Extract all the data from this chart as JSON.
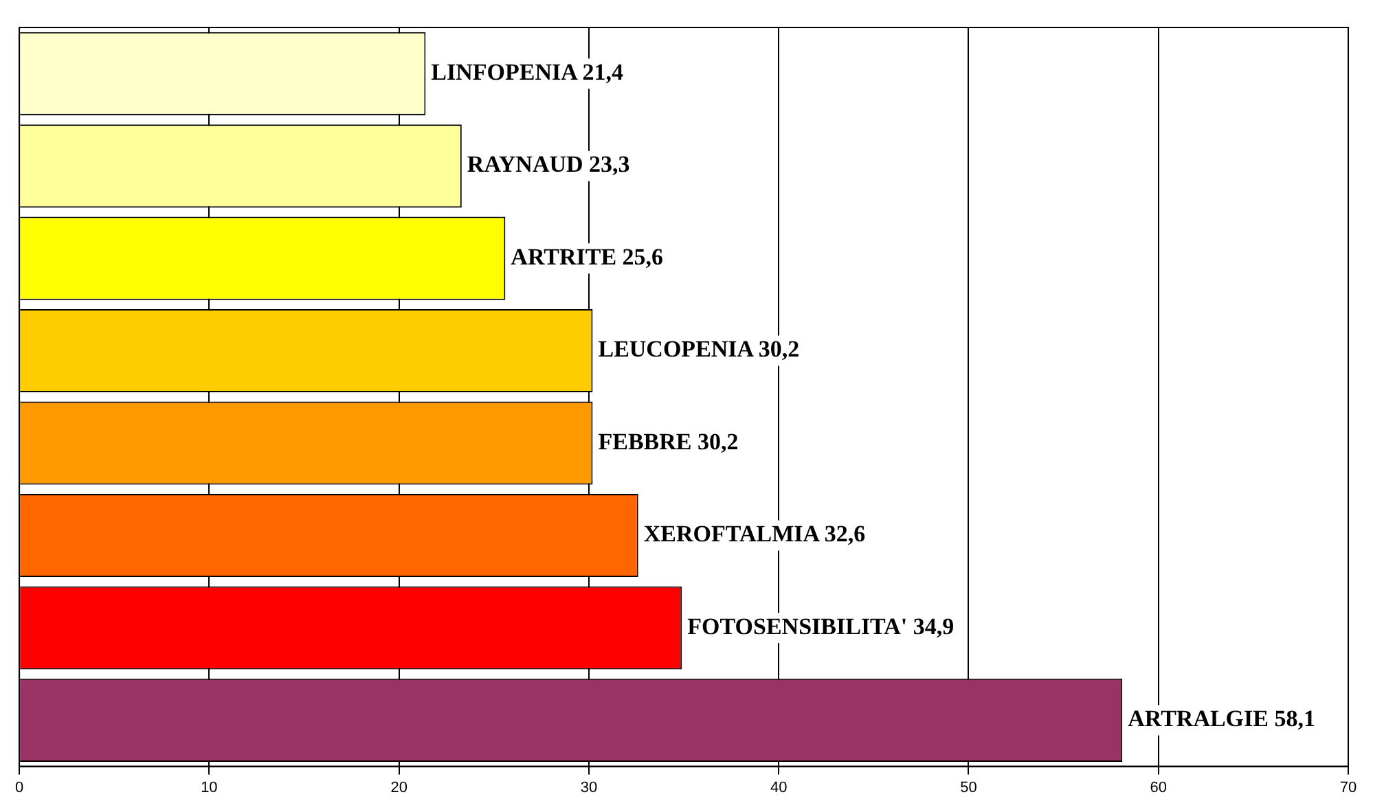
{
  "chart_data": {
    "type": "bar",
    "orientation": "horizontal",
    "categories": [
      "LINFOPENIA",
      "RAYNAUD",
      "ARTRITE",
      "LEUCOPENIA",
      "FEBBRE",
      "XEROFTALMIA",
      "FOTOSENSIBILITA'",
      "ARTRALGIE"
    ],
    "values": [
      21.4,
      23.3,
      25.6,
      30.2,
      30.2,
      32.6,
      34.9,
      58.1
    ],
    "value_labels": [
      "21,4",
      "23,3",
      "25,6",
      "30,2",
      "30,2",
      "32,6",
      "34,9",
      "58,1"
    ],
    "colors": [
      "#ffffcc",
      "#ffff99",
      "#ffff00",
      "#ffcc00",
      "#ff9900",
      "#ff6600",
      "#ff0000",
      "#993366"
    ],
    "xlim": [
      0,
      70
    ],
    "xticks": [
      0,
      10,
      20,
      30,
      40,
      50,
      60,
      70
    ],
    "grid": "x",
    "tick_labels": "x"
  }
}
